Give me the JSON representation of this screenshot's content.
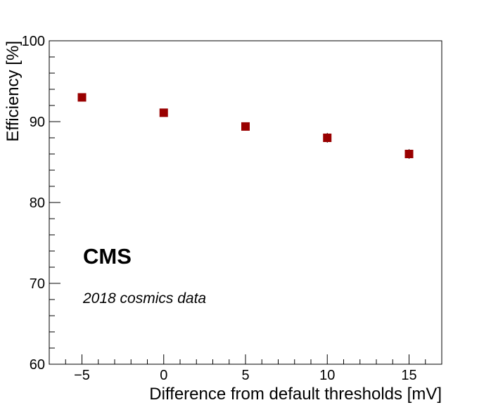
{
  "chart_data": {
    "type": "scatter",
    "title": "",
    "xlabel": "Difference from default thresholds [mV]",
    "ylabel": "Efficiency [%]",
    "xlim": [
      -7,
      17
    ],
    "ylim": [
      60,
      100
    ],
    "x_ticks": [
      -5,
      0,
      5,
      10,
      15
    ],
    "x_tick_labels": [
      "−5",
      "0",
      "5",
      "10",
      "15"
    ],
    "y_ticks": [
      60,
      70,
      80,
      90,
      100
    ],
    "y_tick_labels": [
      "60",
      "70",
      "80",
      "90",
      "100"
    ],
    "grid": false,
    "series": [
      {
        "x": [
          -5,
          0,
          5,
          10,
          15
        ],
        "y": [
          93.0,
          91.1,
          89.4,
          88.0,
          86.0
        ],
        "yerr": [
          0.4,
          0.4,
          0.5,
          0.6,
          0.6
        ],
        "color": "#990000",
        "marker": "square"
      }
    ],
    "annotations": {
      "experiment": "CMS",
      "dataset": "2018 cosmics data"
    }
  }
}
